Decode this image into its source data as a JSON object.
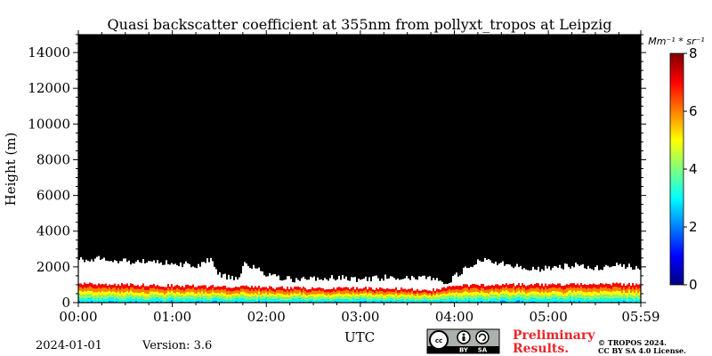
{
  "chart_data": {
    "type": "heatmap",
    "title": "Quasi backscatter coefficient at 355nm from pollyxt_tropos at Leipzig",
    "xlabel": "UTC",
    "ylabel": "Height (m)",
    "x_ticks": [
      "00:00",
      "01:00",
      "02:00",
      "03:00",
      "04:00",
      "05:00",
      "05:59"
    ],
    "x_range_hours": [
      0,
      5.9833
    ],
    "y_ticks": [
      0,
      2000,
      4000,
      6000,
      8000,
      10000,
      12000,
      14000
    ],
    "ylim": [
      0,
      15000
    ],
    "colorbar": {
      "label": "Mm⁻¹ * sr⁻¹",
      "range": [
        0,
        8
      ],
      "ticks": [
        0,
        2,
        4,
        6,
        8
      ],
      "colormap": "jet",
      "colors": [
        "#00007f",
        "#0000ff",
        "#007fff",
        "#00ffff",
        "#7fff7f",
        "#ffff00",
        "#ff7f00",
        "#ff0000",
        "#7f0000"
      ]
    },
    "background_color": "#000000",
    "no_signal_color": "#ffffff",
    "signal_top_height_m": [
      [
        0.0,
        2400
      ],
      [
        0.25,
        2500
      ],
      [
        0.5,
        2300
      ],
      [
        0.75,
        2300
      ],
      [
        1.0,
        2200
      ],
      [
        1.25,
        2100
      ],
      [
        1.4,
        2400
      ],
      [
        1.5,
        1500
      ],
      [
        1.7,
        1400
      ],
      [
        1.75,
        2200
      ],
      [
        1.9,
        1900
      ],
      [
        2.0,
        1500
      ],
      [
        2.25,
        1300
      ],
      [
        2.5,
        1300
      ],
      [
        2.75,
        1400
      ],
      [
        3.0,
        1300
      ],
      [
        3.25,
        1400
      ],
      [
        3.5,
        1400
      ],
      [
        3.75,
        1400
      ],
      [
        3.9,
        1000
      ],
      [
        4.0,
        1500
      ],
      [
        4.25,
        2400
      ],
      [
        4.5,
        2200
      ],
      [
        4.75,
        1900
      ],
      [
        5.0,
        1900
      ],
      [
        5.25,
        2100
      ],
      [
        5.5,
        1900
      ],
      [
        5.75,
        2100
      ],
      [
        5.98,
        1900
      ]
    ],
    "aerosol_layer_top_height_m": [
      [
        0.0,
        1050
      ],
      [
        0.5,
        1000
      ],
      [
        1.0,
        950
      ],
      [
        1.5,
        900
      ],
      [
        2.0,
        850
      ],
      [
        2.5,
        800
      ],
      [
        3.0,
        800
      ],
      [
        3.5,
        750
      ],
      [
        3.8,
        700
      ],
      [
        4.0,
        950
      ],
      [
        4.5,
        1000
      ],
      [
        5.0,
        1000
      ],
      [
        5.5,
        1050
      ],
      [
        5.98,
        1000
      ]
    ]
  },
  "footer": {
    "date": "2024-01-01",
    "version": "Version: 3.6",
    "preliminary_line1": "Preliminary",
    "preliminary_line2": "Results.",
    "copyright_line1": "© TROPOS 2024.",
    "copyright_line2": "CC BY SA 4.0 License.",
    "cc_badge_labels": [
      "cc",
      "BY",
      "SA"
    ],
    "preliminary_color": "#e8262b"
  }
}
